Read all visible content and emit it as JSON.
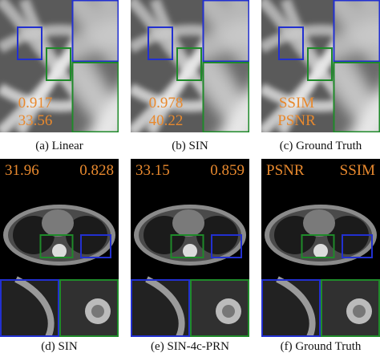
{
  "top_row": [
    {
      "caption": "(a) Linear",
      "overlay": [
        "0.917",
        "33.56"
      ]
    },
    {
      "caption": "(b) SIN",
      "overlay": [
        "0.978",
        "40.22"
      ]
    },
    {
      "caption": "(c) Ground Truth",
      "overlay": [
        "SSIM",
        "PSNR"
      ]
    }
  ],
  "bottom_row": [
    {
      "caption": "(d) SIN",
      "overlay": [
        "31.96",
        "0.828"
      ]
    },
    {
      "caption": "(e) SIN-4c-PRN",
      "overlay": [
        "33.15",
        "0.859"
      ]
    },
    {
      "caption": "(f) Ground Truth",
      "overlay": [
        "PSNR",
        "SSIM"
      ]
    }
  ]
}
